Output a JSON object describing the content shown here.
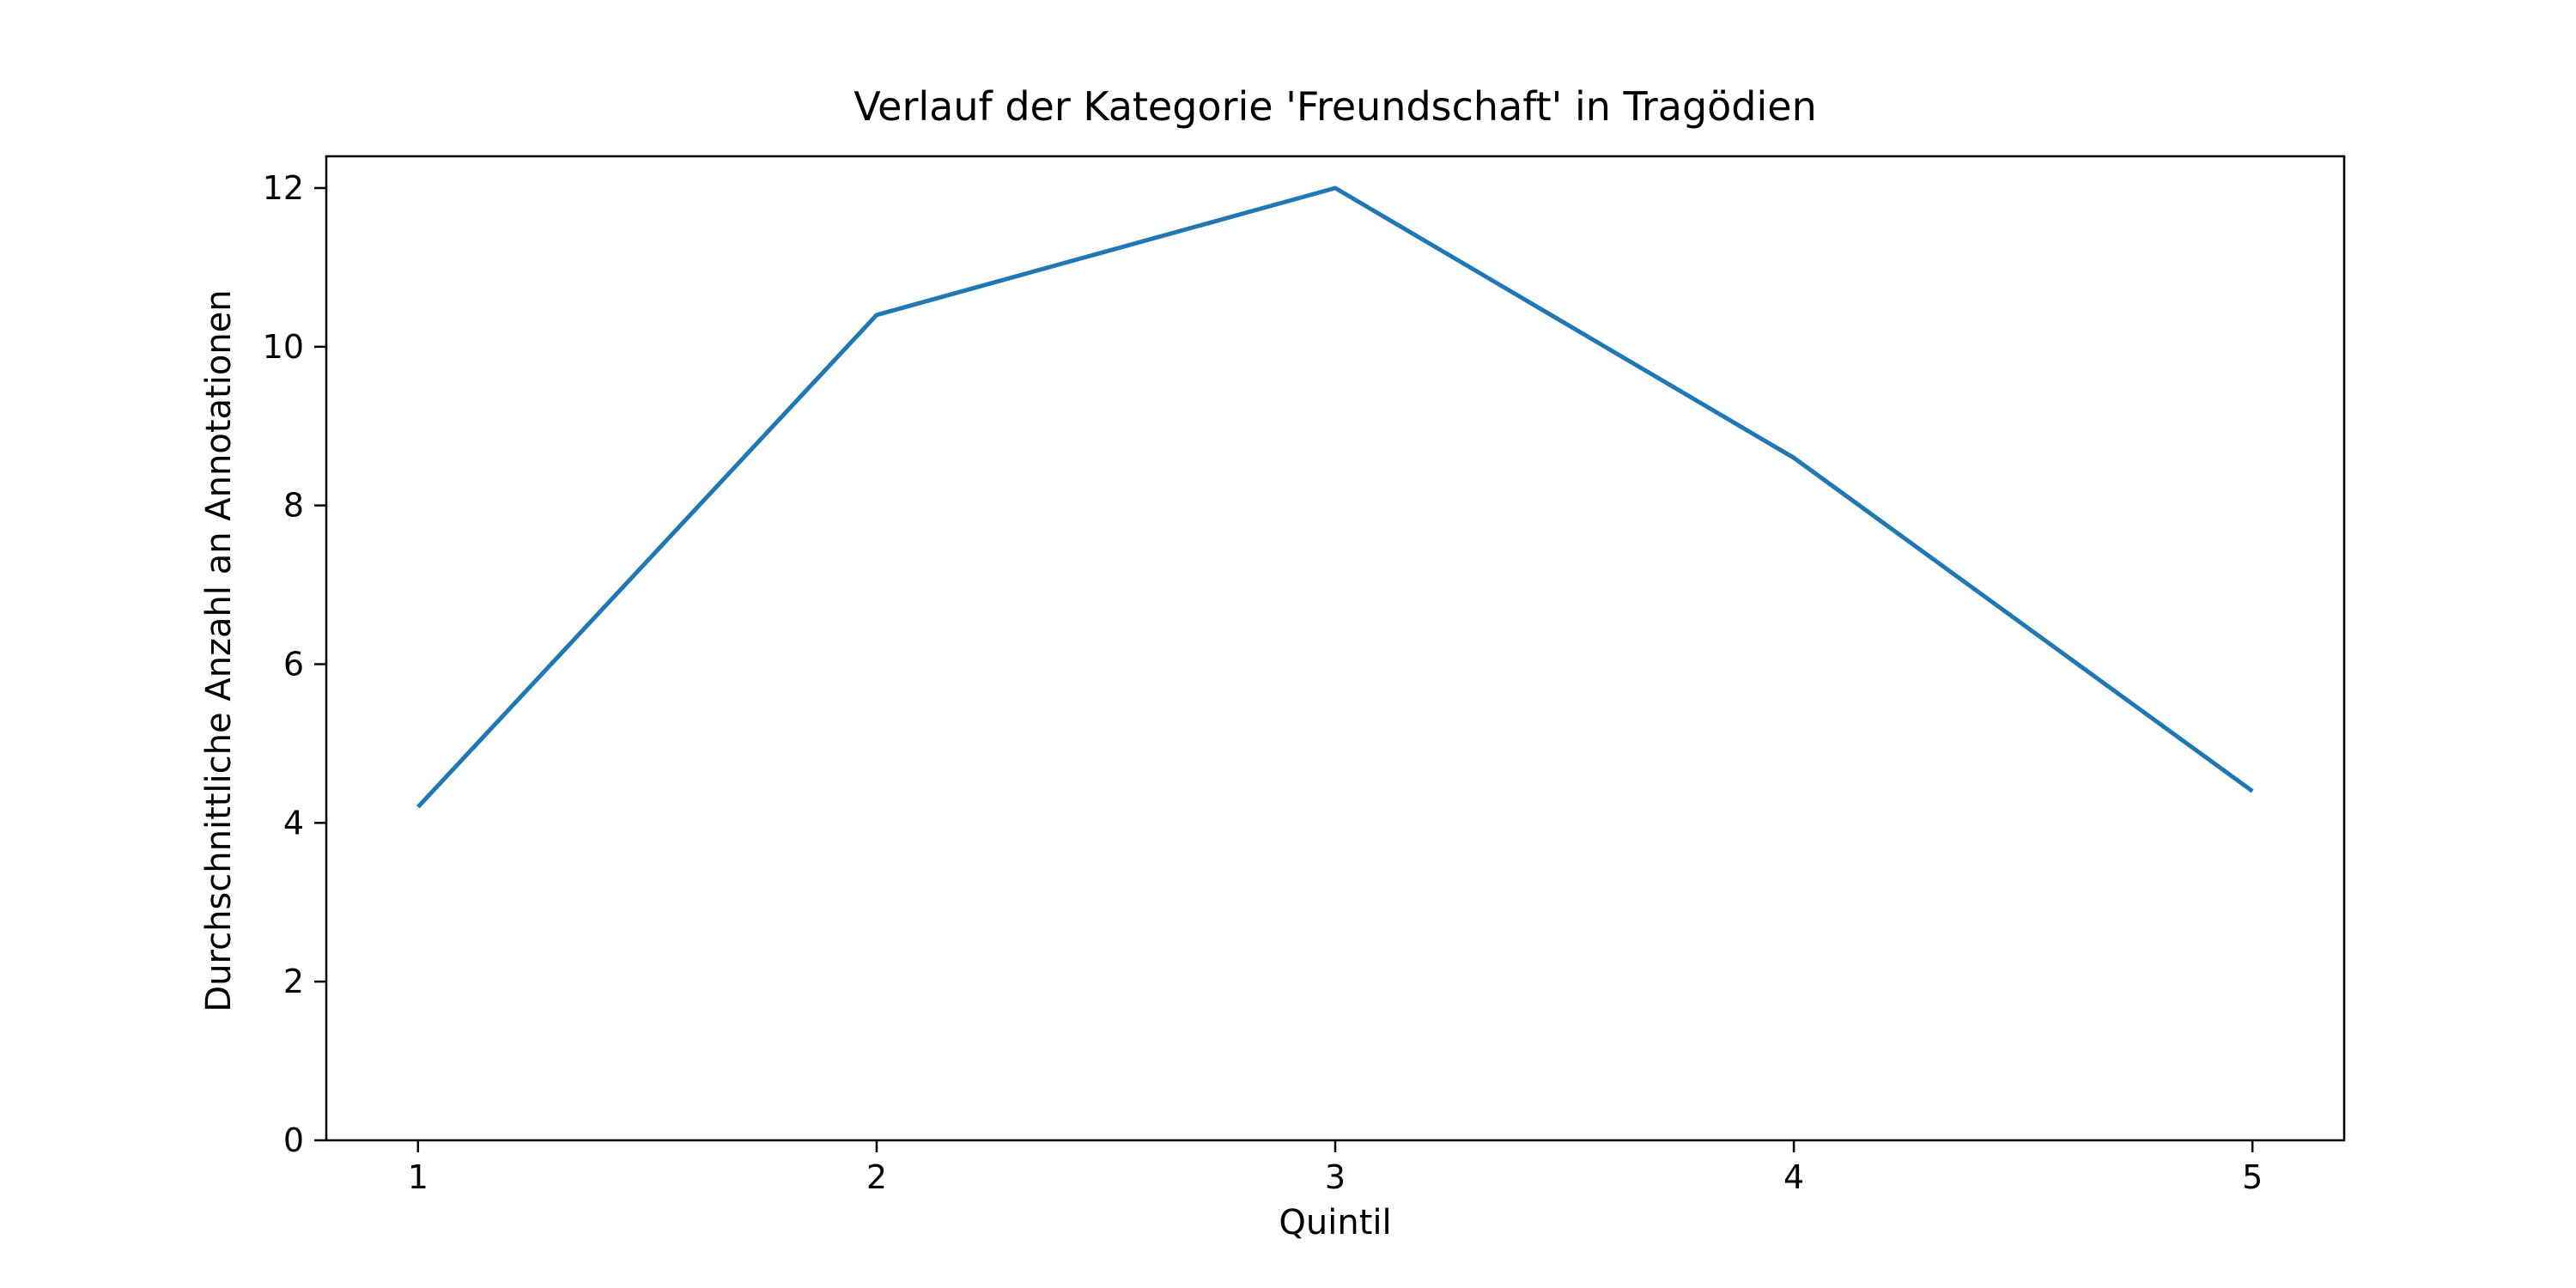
{
  "chart_data": {
    "type": "line",
    "title": "Verlauf der Kategorie 'Freundschaft' in Tragödien",
    "xlabel": "Quintil",
    "ylabel": "Durchschnittliche Anzahl an Annotationen",
    "x": [
      1,
      2,
      3,
      4,
      5
    ],
    "series": [
      {
        "values": [
          4.2,
          10.4,
          12.0,
          8.6,
          4.4
        ]
      }
    ],
    "xlim": [
      0.8,
      5.2
    ],
    "ylim": [
      0,
      12.4
    ],
    "xticks": [
      1,
      2,
      3,
      4,
      5
    ],
    "yticks": [
      0,
      2,
      4,
      6,
      8,
      10,
      12
    ],
    "grid": false,
    "line_color": "#1f77b4"
  }
}
